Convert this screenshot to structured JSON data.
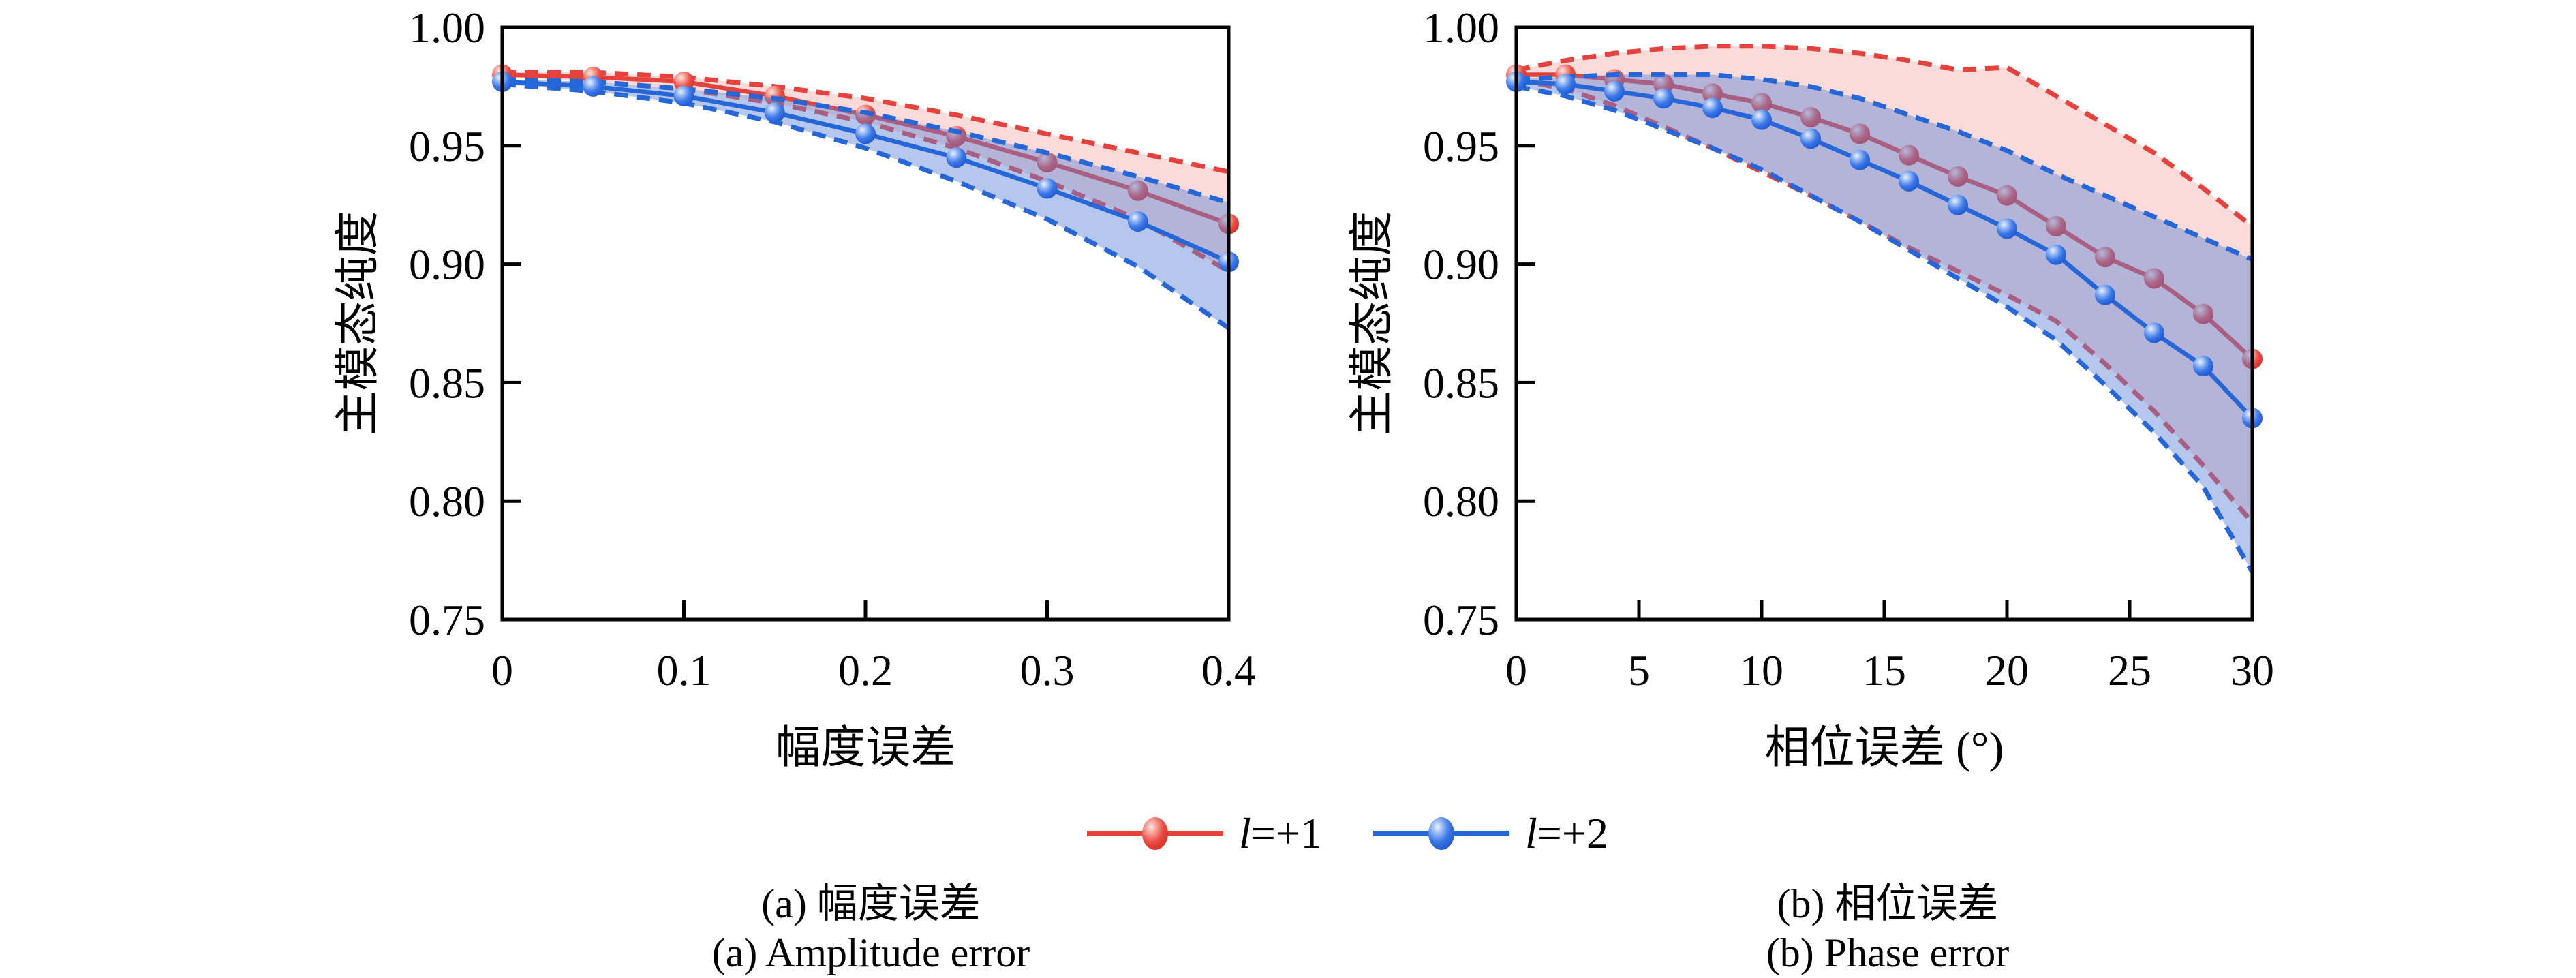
{
  "figure": {
    "background": "#ffffff"
  },
  "colors": {
    "red": "#e5423d",
    "blue": "#2566d8",
    "red_fill": "rgba(240,125,120,0.28)",
    "blue_fill": "rgba(94,130,216,0.45)",
    "axis": "#000000",
    "text": "#000000"
  },
  "legend": {
    "items": [
      {
        "id": "l-plus-1",
        "symbol": "l",
        "rest": "=+1",
        "color": "red"
      },
      {
        "id": "l-plus-2",
        "symbol": "l",
        "rest": "=+2",
        "color": "blue"
      }
    ]
  },
  "captions": {
    "a_cn": "(a) 幅度误差",
    "a_en": "(a) Amplitude error",
    "b_cn": "(b) 相位误差",
    "b_en": "(b) Phase error"
  },
  "chart_data": [
    {
      "id": "amplitude-error",
      "type": "line",
      "title": "",
      "xlabel": "幅度误差",
      "ylabel": "主模态纯度",
      "xlim": [
        0,
        0.4
      ],
      "ylim": [
        0.75,
        1.0
      ],
      "grid": false,
      "xticks": [
        0,
        0.1,
        0.2,
        0.3,
        0.4
      ],
      "xtick_labels": [
        "0",
        "0.1",
        "0.2",
        "0.3",
        "0.4"
      ],
      "yticks": [
        0.75,
        0.8,
        0.85,
        0.9,
        0.95,
        1.0
      ],
      "ytick_labels": [
        "0.75",
        "0.80",
        "0.85",
        "0.90",
        "0.95",
        "1.00"
      ],
      "x": [
        0,
        0.05,
        0.1,
        0.15,
        0.2,
        0.25,
        0.3,
        0.35,
        0.4
      ],
      "series": [
        {
          "name": "l=+1",
          "color": "red",
          "mean": [
            0.98,
            0.979,
            0.977,
            0.971,
            0.963,
            0.954,
            0.943,
            0.931,
            0.917
          ],
          "upper": [
            0.981,
            0.981,
            0.979,
            0.975,
            0.97,
            0.963,
            0.955,
            0.947,
            0.939
          ],
          "lower": [
            0.979,
            0.977,
            0.974,
            0.968,
            0.96,
            0.949,
            0.935,
            0.919,
            0.897
          ]
        },
        {
          "name": "l=+2",
          "color": "blue",
          "mean": [
            0.977,
            0.975,
            0.971,
            0.964,
            0.955,
            0.945,
            0.932,
            0.918,
            0.901
          ],
          "upper": [
            0.978,
            0.977,
            0.974,
            0.97,
            0.964,
            0.956,
            0.947,
            0.937,
            0.926
          ],
          "lower": [
            0.976,
            0.973,
            0.968,
            0.96,
            0.949,
            0.935,
            0.919,
            0.899,
            0.873
          ]
        }
      ]
    },
    {
      "id": "phase-error",
      "type": "line",
      "title": "",
      "xlabel": "相位误差 (°)",
      "ylabel": "主模态纯度",
      "xlim": [
        0,
        30
      ],
      "ylim": [
        0.75,
        1.0
      ],
      "grid": false,
      "xticks": [
        0,
        5,
        10,
        15,
        20,
        25,
        30
      ],
      "xtick_labels": [
        "0",
        "5",
        "10",
        "15",
        "20",
        "25",
        "30"
      ],
      "yticks": [
        0.75,
        0.8,
        0.85,
        0.9,
        0.95,
        1.0
      ],
      "ytick_labels": [
        "0.75",
        "0.80",
        "0.85",
        "0.90",
        "0.95",
        "1.00"
      ],
      "x": [
        0,
        2,
        4,
        6,
        8,
        10,
        12,
        14,
        16,
        18,
        20,
        22,
        24,
        26,
        28,
        30
      ],
      "series": [
        {
          "name": "l=+1",
          "color": "red",
          "mean": [
            0.98,
            0.98,
            0.978,
            0.976,
            0.972,
            0.968,
            0.962,
            0.955,
            0.946,
            0.937,
            0.929,
            0.916,
            0.903,
            0.894,
            0.879,
            0.86
          ],
          "upper": [
            0.982,
            0.986,
            0.989,
            0.991,
            0.992,
            0.992,
            0.991,
            0.989,
            0.986,
            0.982,
            0.983,
            0.971,
            0.959,
            0.947,
            0.932,
            0.916
          ],
          "lower": [
            0.978,
            0.974,
            0.967,
            0.958,
            0.949,
            0.939,
            0.929,
            0.918,
            0.907,
            0.897,
            0.887,
            0.876,
            0.858,
            0.838,
            0.815,
            0.791
          ]
        },
        {
          "name": "l=+2",
          "color": "blue",
          "mean": [
            0.977,
            0.976,
            0.973,
            0.97,
            0.966,
            0.961,
            0.953,
            0.944,
            0.935,
            0.925,
            0.915,
            0.904,
            0.887,
            0.871,
            0.857,
            0.835
          ],
          "upper": [
            0.978,
            0.979,
            0.98,
            0.98,
            0.98,
            0.978,
            0.975,
            0.97,
            0.963,
            0.956,
            0.948,
            0.938,
            0.929,
            0.92,
            0.911,
            0.902
          ],
          "lower": [
            0.975,
            0.971,
            0.965,
            0.957,
            0.949,
            0.94,
            0.929,
            0.918,
            0.906,
            0.894,
            0.882,
            0.868,
            0.849,
            0.829,
            0.806,
            0.77
          ]
        }
      ]
    }
  ]
}
